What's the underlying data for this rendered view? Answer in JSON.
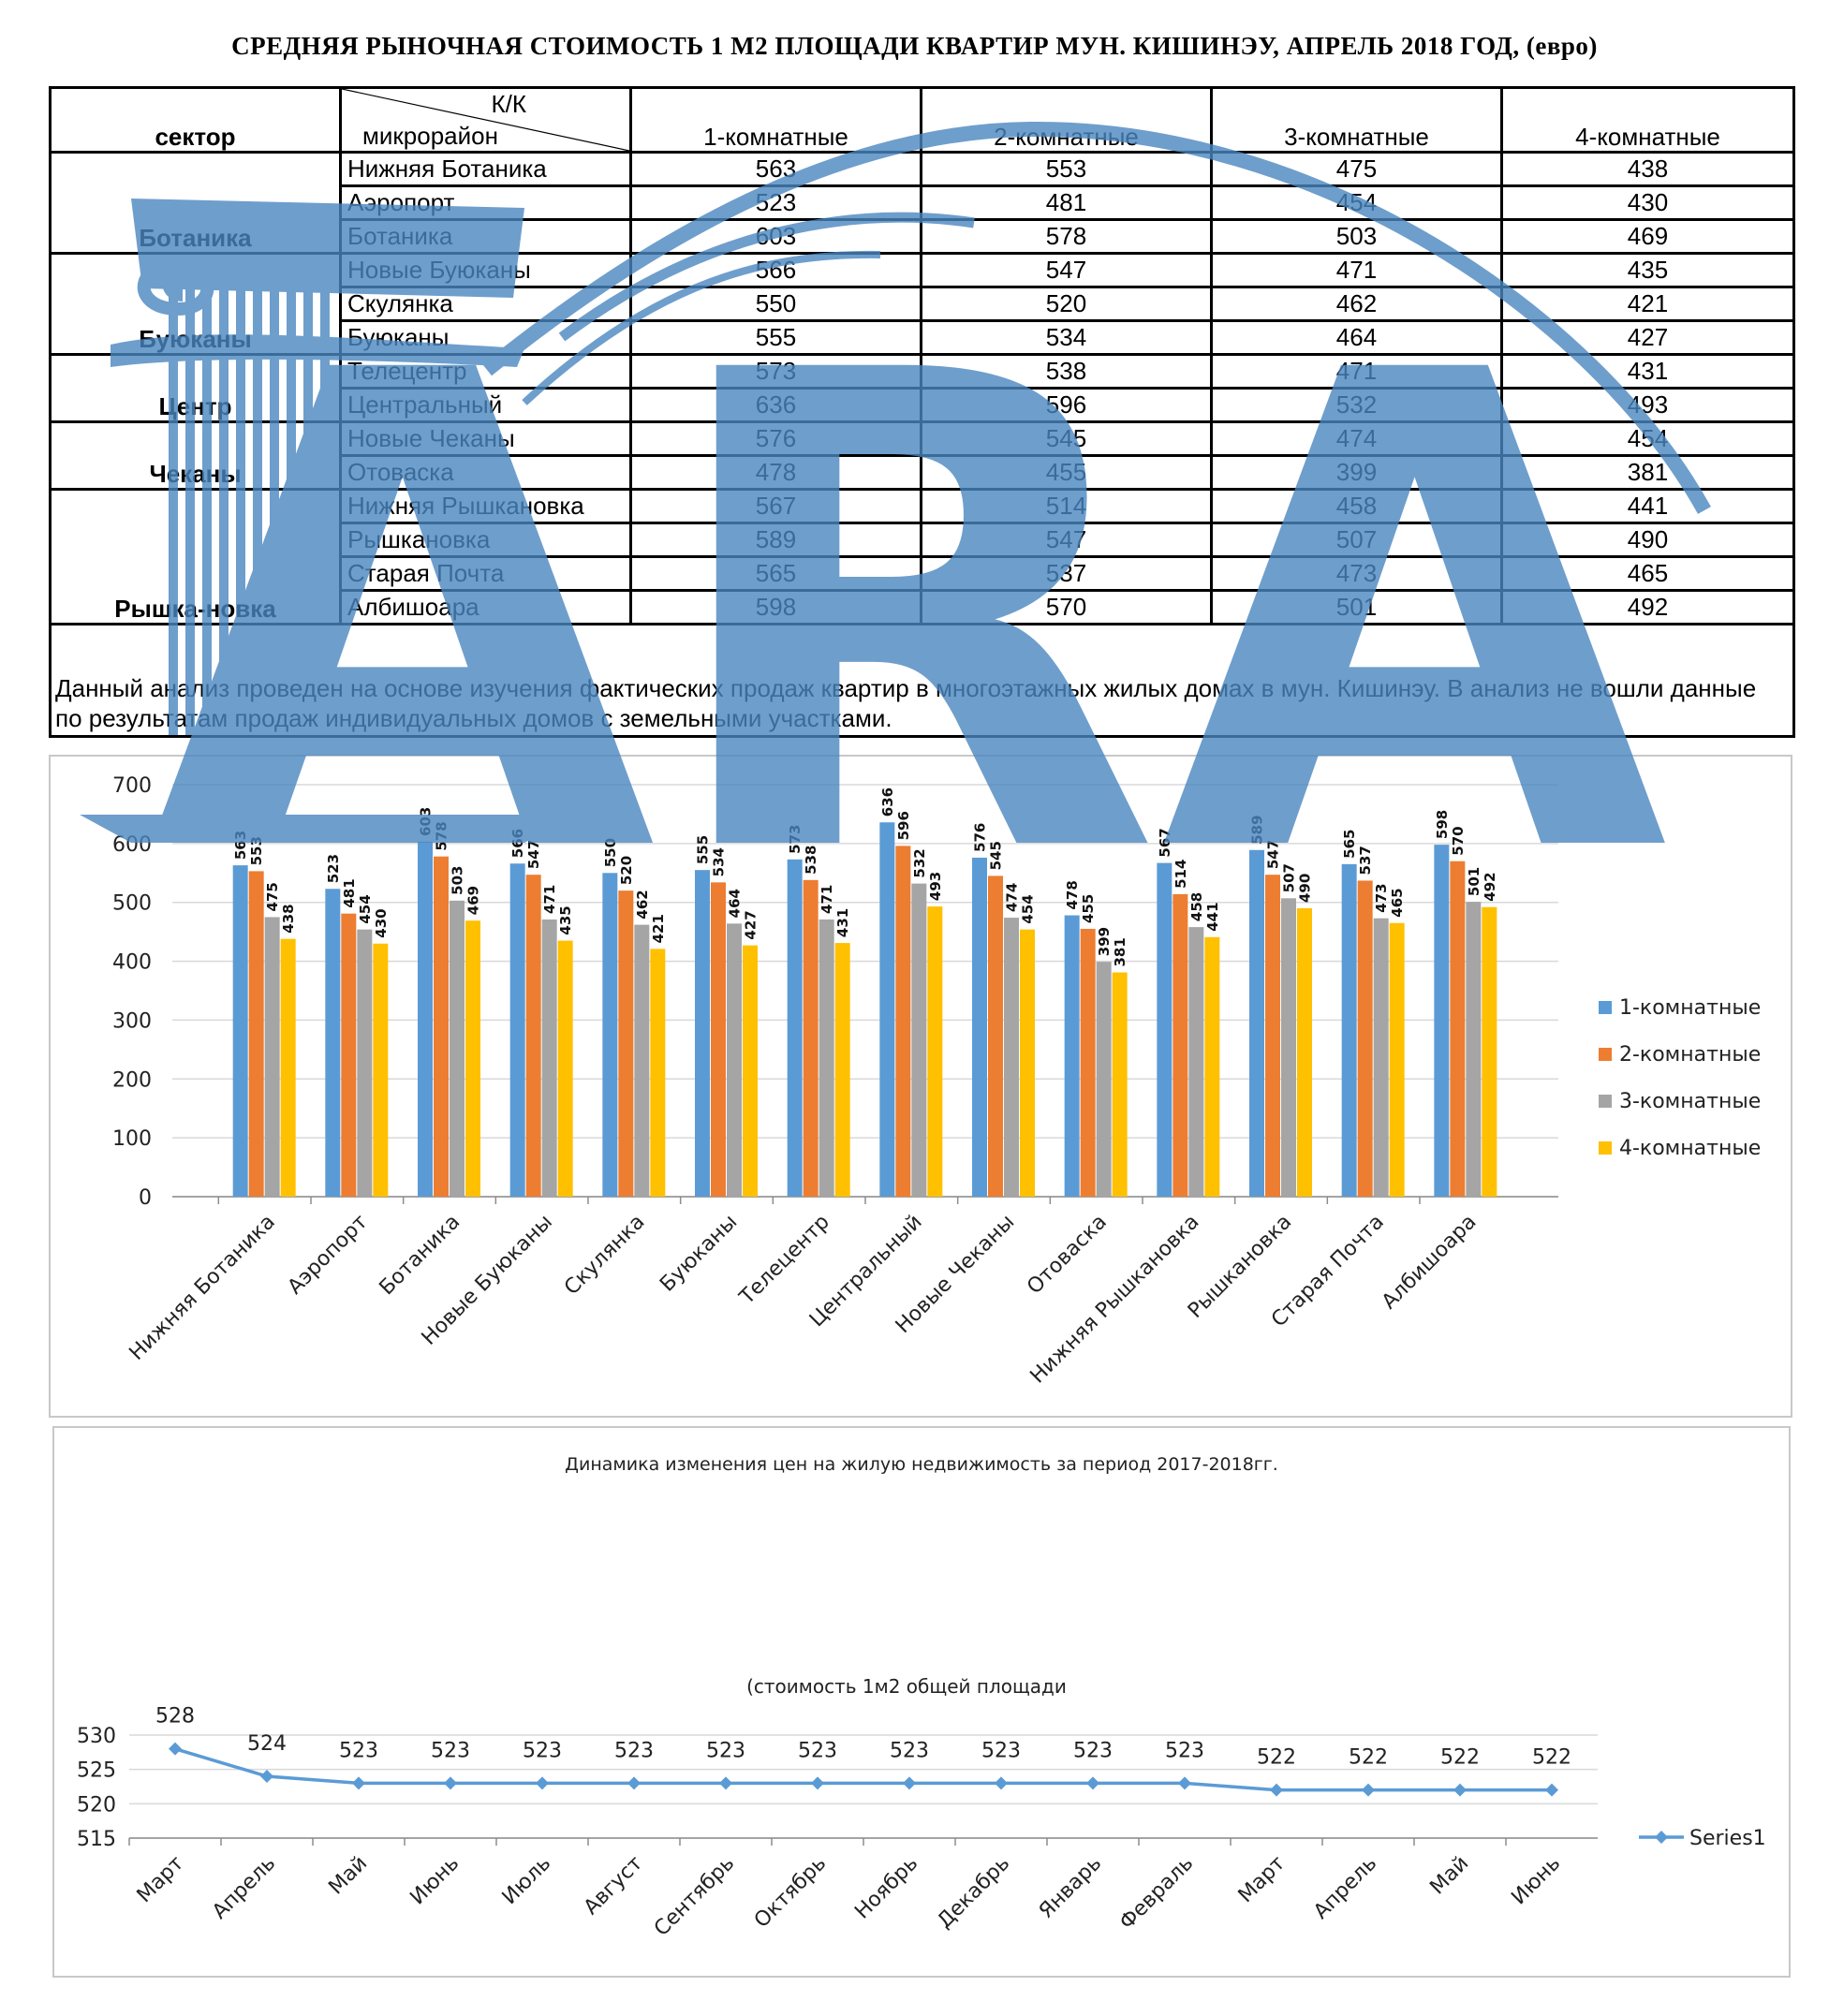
{
  "title": "СРЕДНЯЯ  РЫНОЧНАЯ  СТОИМОСТЬ  1 М2  ПЛОЩАДИ  КВАРТИР МУН.  КИШИНЭУ, АПРЕЛЬ 2018 ГОД, (евро)",
  "table": {
    "sector_header": "сектор",
    "corner_top": "К/К",
    "corner_bottom": "микрорайон",
    "columns": [
      "1-комнатные",
      "2-комнатные",
      "3-комнатные",
      "4-комнатные"
    ],
    "sectors": [
      {
        "name": "Ботаника",
        "rows": [
          {
            "district": "Нижняя Ботаника",
            "values": [
              "563",
              "553",
              "475",
              "438"
            ]
          },
          {
            "district": "Аэропорт",
            "values": [
              "523",
              "481",
              "454",
              "430"
            ]
          },
          {
            "district": "Ботаника",
            "values": [
              "603",
              "578",
              "503",
              "469"
            ]
          }
        ]
      },
      {
        "name": "Буюканы",
        "rows": [
          {
            "district": "Новые Буюканы",
            "values": [
              "566",
              "547",
              "471",
              "435"
            ]
          },
          {
            "district": "Скулянка",
            "values": [
              "550",
              "520",
              "462",
              "421"
            ]
          },
          {
            "district": "Буюканы",
            "values": [
              "555",
              "534",
              "464",
              "427"
            ]
          }
        ]
      },
      {
        "name": "Центр",
        "rows": [
          {
            "district": "Телецентр",
            "values": [
              "573",
              "538",
              "471",
              "431"
            ]
          },
          {
            "district": "Центральный",
            "values": [
              "636",
              "596",
              "532",
              "493"
            ]
          }
        ]
      },
      {
        "name": "Чеканы",
        "rows": [
          {
            "district": "Новые Чеканы",
            "values": [
              "576",
              "545",
              "474",
              "454"
            ]
          },
          {
            "district": "Отоваска",
            "values": [
              "478",
              "455",
              "399",
              "381"
            ]
          }
        ]
      },
      {
        "name": "Рышка-новка",
        "rows": [
          {
            "district": "Нижняя Рышкановка",
            "values": [
              "567",
              "514",
              "458",
              "441"
            ]
          },
          {
            "district": "Рышкановка",
            "values": [
              "589",
              "547",
              "507",
              "490"
            ]
          },
          {
            "district": "Старая Почта",
            "values": [
              "565",
              "537",
              "473",
              "465"
            ]
          },
          {
            "district": "Албишоара",
            "values": [
              "598",
              "570",
              "501",
              "492"
            ]
          }
        ]
      }
    ],
    "note": "Данный анализ проведен на основе изучения фактических продаж квартир в многоэтажных жилых домах в мун. Кишинэу. В анализ не вошли данные по результатам  продаж индивидуальных домов с земельными участками."
  },
  "watermark_text": "ARA",
  "colors": {
    "s1": "#5b9bd5",
    "s2": "#ed7d31",
    "s3": "#a5a5a5",
    "s4": "#ffc000",
    "line": "#5b9bd5",
    "watermark": "#4a86c0"
  },
  "chart_data": [
    {
      "type": "bar",
      "categories": [
        "Нижняя Ботаника",
        "Аэропорт",
        "Ботаника",
        "Новые Буюканы",
        "Скулянка",
        "Буюканы",
        "Телецентр",
        "Центральный",
        "Новые Чеканы",
        "Отоваска",
        "Нижняя Рышкановка",
        "Рышкановка",
        "Старая Почта",
        "Албишоара"
      ],
      "series": [
        {
          "name": "1-комнатные",
          "values": [
            563,
            523,
            603,
            566,
            550,
            555,
            573,
            636,
            576,
            478,
            567,
            589,
            565,
            598
          ]
        },
        {
          "name": "2-комнатные",
          "values": [
            553,
            481,
            578,
            547,
            520,
            534,
            538,
            596,
            545,
            455,
            514,
            547,
            537,
            570
          ]
        },
        {
          "name": "3-комнатные",
          "values": [
            475,
            454,
            503,
            471,
            462,
            464,
            471,
            532,
            474,
            399,
            458,
            507,
            473,
            501
          ]
        },
        {
          "name": "4-комнатные",
          "values": [
            438,
            430,
            469,
            435,
            421,
            427,
            431,
            493,
            454,
            381,
            441,
            490,
            465,
            492
          ]
        }
      ],
      "ylim": [
        0,
        700
      ],
      "yticks": [
        0,
        100,
        200,
        300,
        400,
        500,
        600,
        700
      ],
      "grid": true,
      "legend": "right",
      "data_labels": true
    },
    {
      "type": "line",
      "title": "Динамика изменения цен на жилую недвижимость за период 2017-2018гг.",
      "subtitle": "(стоимость 1м2 общей площади",
      "categories": [
        "Март",
        "Апрель",
        "Май",
        "Июнь",
        "Июль",
        "Август",
        "Сентябрь",
        "Октябрь",
        "Ноябрь",
        "Декабрь",
        "Январь",
        "Февраль",
        "Март",
        "Апрель",
        "Май",
        "Июнь"
      ],
      "series": [
        {
          "name": "Series1",
          "values": [
            528,
            524,
            523,
            523,
            523,
            523,
            523,
            523,
            523,
            523,
            523,
            523,
            522,
            522,
            522,
            522
          ]
        }
      ],
      "ylim": [
        515,
        530
      ],
      "yticks": [
        515,
        520,
        525,
        530
      ],
      "grid": true,
      "legend": "right",
      "data_labels": true
    }
  ]
}
